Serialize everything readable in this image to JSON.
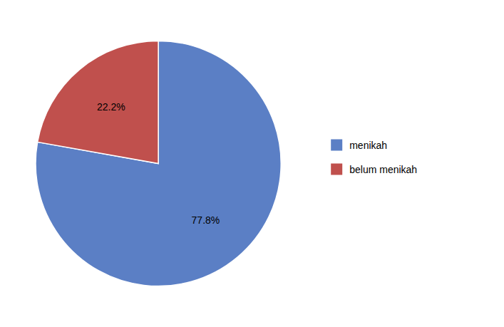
{
  "chart_data": {
    "type": "pie",
    "categories": [
      "menikah",
      "belum menikah"
    ],
    "values": [
      77.8,
      22.2
    ],
    "value_labels": [
      "77.8%",
      "22.2%"
    ],
    "colors": [
      "#5B7FC5",
      "#C0504D"
    ],
    "data_labels": true,
    "legend": "right"
  }
}
